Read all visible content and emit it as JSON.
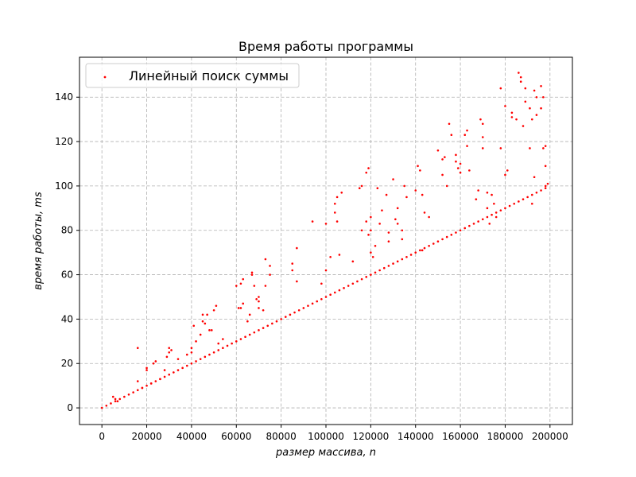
{
  "chart_data": {
    "type": "scatter",
    "title": "Время работы программы",
    "xlabel": "размер массива, n",
    "ylabel": "время работы, ms",
    "xlim": [
      -10000,
      210000
    ],
    "ylim": [
      -7.5,
      158
    ],
    "xticks": [
      0,
      20000,
      40000,
      60000,
      80000,
      100000,
      120000,
      140000,
      160000,
      180000,
      200000
    ],
    "yticks": [
      0,
      20,
      40,
      60,
      80,
      100,
      120,
      140
    ],
    "grid": true,
    "legend_position": "top-left",
    "color": "#ff0000",
    "series": [
      {
        "name": "Линейный поиск суммы",
        "points": [
          [
            0,
            0
          ],
          [
            2000,
            1
          ],
          [
            4000,
            2
          ],
          [
            6000,
            3
          ],
          [
            8000,
            4
          ],
          [
            10000,
            5
          ],
          [
            12000,
            6
          ],
          [
            14000,
            7
          ],
          [
            16000,
            8
          ],
          [
            18000,
            9
          ],
          [
            20000,
            10
          ],
          [
            22000,
            11
          ],
          [
            24000,
            12
          ],
          [
            26000,
            13
          ],
          [
            28000,
            14
          ],
          [
            30000,
            15
          ],
          [
            32000,
            16
          ],
          [
            34000,
            17
          ],
          [
            36000,
            18
          ],
          [
            38000,
            19
          ],
          [
            40000,
            20
          ],
          [
            42000,
            21
          ],
          [
            44000,
            22
          ],
          [
            46000,
            23
          ],
          [
            48000,
            24
          ],
          [
            50000,
            25
          ],
          [
            52000,
            26
          ],
          [
            54000,
            27
          ],
          [
            56000,
            28
          ],
          [
            58000,
            29
          ],
          [
            60000,
            30
          ],
          [
            62000,
            31
          ],
          [
            64000,
            32
          ],
          [
            66000,
            33
          ],
          [
            68000,
            34
          ],
          [
            70000,
            35
          ],
          [
            72000,
            36
          ],
          [
            74000,
            37
          ],
          [
            76000,
            38
          ],
          [
            78000,
            39
          ],
          [
            80000,
            40
          ],
          [
            82000,
            41
          ],
          [
            84000,
            42
          ],
          [
            86000,
            43
          ],
          [
            88000,
            44
          ],
          [
            90000,
            45
          ],
          [
            92000,
            46
          ],
          [
            94000,
            47
          ],
          [
            96000,
            48
          ],
          [
            98000,
            49
          ],
          [
            100000,
            50
          ],
          [
            102000,
            51
          ],
          [
            104000,
            52
          ],
          [
            106000,
            53
          ],
          [
            108000,
            54
          ],
          [
            110000,
            55
          ],
          [
            112000,
            56
          ],
          [
            114000,
            57
          ],
          [
            116000,
            58
          ],
          [
            118000,
            59
          ],
          [
            120000,
            60
          ],
          [
            122000,
            61
          ],
          [
            124000,
            62
          ],
          [
            126000,
            63
          ],
          [
            128000,
            64
          ],
          [
            130000,
            65
          ],
          [
            132000,
            66
          ],
          [
            134000,
            67
          ],
          [
            136000,
            68
          ],
          [
            138000,
            69
          ],
          [
            140000,
            70
          ],
          [
            142000,
            71
          ],
          [
            144000,
            72
          ],
          [
            146000,
            73
          ],
          [
            148000,
            74
          ],
          [
            150000,
            75
          ],
          [
            152000,
            76
          ],
          [
            154000,
            77
          ],
          [
            156000,
            78
          ],
          [
            158000,
            79
          ],
          [
            160000,
            80
          ],
          [
            162000,
            81
          ],
          [
            164000,
            82
          ],
          [
            166000,
            83
          ],
          [
            168000,
            84
          ],
          [
            170000,
            85
          ],
          [
            172000,
            86
          ],
          [
            174000,
            87
          ],
          [
            176000,
            88
          ],
          [
            178000,
            89
          ],
          [
            180000,
            90
          ],
          [
            182000,
            91
          ],
          [
            184000,
            92
          ],
          [
            186000,
            93
          ],
          [
            188000,
            94
          ],
          [
            190000,
            95
          ],
          [
            192000,
            96
          ],
          [
            194000,
            97
          ],
          [
            196000,
            98
          ],
          [
            198000,
            99
          ],
          [
            199000,
            101
          ],
          [
            5000,
            5
          ],
          [
            6000,
            4
          ],
          [
            7000,
            3
          ],
          [
            16000,
            27
          ],
          [
            16000,
            12
          ],
          [
            18000,
            9
          ],
          [
            20000,
            17
          ],
          [
            20000,
            18
          ],
          [
            22000,
            11
          ],
          [
            23000,
            20
          ],
          [
            24000,
            21
          ],
          [
            26000,
            13
          ],
          [
            28000,
            17
          ],
          [
            29000,
            23
          ],
          [
            30000,
            25
          ],
          [
            30000,
            27
          ],
          [
            31000,
            26
          ],
          [
            34000,
            22
          ],
          [
            38000,
            24
          ],
          [
            40000,
            25
          ],
          [
            40000,
            27
          ],
          [
            41000,
            37
          ],
          [
            42000,
            30
          ],
          [
            44000,
            33
          ],
          [
            45000,
            39
          ],
          [
            45000,
            42
          ],
          [
            46000,
            38
          ],
          [
            47000,
            42
          ],
          [
            48000,
            35
          ],
          [
            49000,
            35
          ],
          [
            50000,
            44
          ],
          [
            51000,
            46
          ],
          [
            52000,
            29
          ],
          [
            54000,
            31
          ],
          [
            60000,
            55
          ],
          [
            61000,
            45
          ],
          [
            62000,
            56
          ],
          [
            62000,
            45
          ],
          [
            63000,
            58
          ],
          [
            63000,
            47
          ],
          [
            65000,
            39
          ],
          [
            66000,
            42
          ],
          [
            67000,
            60
          ],
          [
            67000,
            61
          ],
          [
            68000,
            55
          ],
          [
            69000,
            49
          ],
          [
            70000,
            50
          ],
          [
            70000,
            48
          ],
          [
            70000,
            45
          ],
          [
            72000,
            44
          ],
          [
            73000,
            67
          ],
          [
            73000,
            55
          ],
          [
            75000,
            60
          ],
          [
            75000,
            64
          ],
          [
            85000,
            62
          ],
          [
            85000,
            65
          ],
          [
            87000,
            57
          ],
          [
            87000,
            72
          ],
          [
            94000,
            84
          ],
          [
            98000,
            56
          ],
          [
            100000,
            83
          ],
          [
            100000,
            62
          ],
          [
            102000,
            68
          ],
          [
            104000,
            88
          ],
          [
            104000,
            92
          ],
          [
            105000,
            95
          ],
          [
            105000,
            84
          ],
          [
            106000,
            69
          ],
          [
            107000,
            97
          ],
          [
            112000,
            66
          ],
          [
            115000,
            99
          ],
          [
            116000,
            100
          ],
          [
            116000,
            80
          ],
          [
            118000,
            106
          ],
          [
            118000,
            84
          ],
          [
            119000,
            108
          ],
          [
            119000,
            78
          ],
          [
            120000,
            86
          ],
          [
            120000,
            70
          ],
          [
            120000,
            80
          ],
          [
            121000,
            68
          ],
          [
            122000,
            73
          ],
          [
            123000,
            99
          ],
          [
            124000,
            83
          ],
          [
            125000,
            89
          ],
          [
            127000,
            96
          ],
          [
            128000,
            79
          ],
          [
            128000,
            75
          ],
          [
            130000,
            103
          ],
          [
            131000,
            85
          ],
          [
            132000,
            90
          ],
          [
            132000,
            83
          ],
          [
            134000,
            80
          ],
          [
            134000,
            76
          ],
          [
            135000,
            100
          ],
          [
            136000,
            95
          ],
          [
            140000,
            98
          ],
          [
            141000,
            109
          ],
          [
            142000,
            107
          ],
          [
            143000,
            96
          ],
          [
            143000,
            71
          ],
          [
            144000,
            88
          ],
          [
            146000,
            86
          ],
          [
            150000,
            116
          ],
          [
            152000,
            112
          ],
          [
            152000,
            105
          ],
          [
            153000,
            113
          ],
          [
            154000,
            100
          ],
          [
            155000,
            128
          ],
          [
            156000,
            123
          ],
          [
            158000,
            114
          ],
          [
            158000,
            111
          ],
          [
            159000,
            108
          ],
          [
            160000,
            110
          ],
          [
            160000,
            106
          ],
          [
            162000,
            123
          ],
          [
            163000,
            125
          ],
          [
            163000,
            118
          ],
          [
            164000,
            107
          ],
          [
            167000,
            94
          ],
          [
            168000,
            98
          ],
          [
            169000,
            130
          ],
          [
            170000,
            122
          ],
          [
            170000,
            128
          ],
          [
            170000,
            117
          ],
          [
            172000,
            97
          ],
          [
            172000,
            90
          ],
          [
            173000,
            83
          ],
          [
            174000,
            96
          ],
          [
            175000,
            92
          ],
          [
            176000,
            86
          ],
          [
            178000,
            144
          ],
          [
            178000,
            117
          ],
          [
            180000,
            136
          ],
          [
            180000,
            105
          ],
          [
            181000,
            107
          ],
          [
            183000,
            133
          ],
          [
            183000,
            131
          ],
          [
            185000,
            130
          ],
          [
            186000,
            151
          ],
          [
            187000,
            147
          ],
          [
            187000,
            149
          ],
          [
            188000,
            127
          ],
          [
            189000,
            144
          ],
          [
            189000,
            138
          ],
          [
            191000,
            135
          ],
          [
            191000,
            117
          ],
          [
            192000,
            92
          ],
          [
            192000,
            130
          ],
          [
            193000,
            143
          ],
          [
            193000,
            104
          ],
          [
            194000,
            140
          ],
          [
            194000,
            132
          ],
          [
            196000,
            145
          ],
          [
            196000,
            135
          ],
          [
            197000,
            140
          ],
          [
            197000,
            117
          ],
          [
            198000,
            118
          ],
          [
            198000,
            109
          ],
          [
            198000,
            100
          ]
        ]
      }
    ]
  }
}
